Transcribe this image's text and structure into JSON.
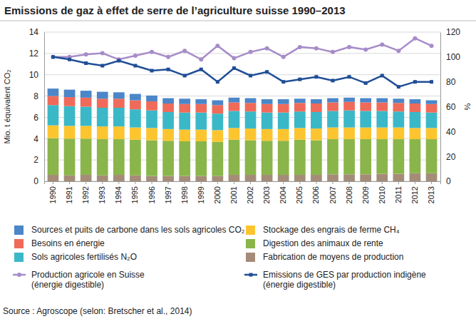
{
  "chart_data": {
    "type": "bar",
    "title": "Emissions de gaz à effet de serre de l’agriculture suisse 1990–2013",
    "y_label": "Mio. t équivalent CO₂",
    "y2_label": "%",
    "source": "Source : Agroscope (selon: Bretscher et al., 2014)",
    "stacked": true,
    "grid": true,
    "legend": "bottom",
    "categories": [
      "1990",
      "1991",
      "1992",
      "1993",
      "1994",
      "1995",
      "1996",
      "1997",
      "1998",
      "1999",
      "2000",
      "2001",
      "2002",
      "2003",
      "2004",
      "2005",
      "2006",
      "2007",
      "2008",
      "2009",
      "2010",
      "2011",
      "2012",
      "2013"
    ],
    "ylim": [
      0,
      14
    ],
    "yticks": [
      0,
      2,
      4,
      6,
      8,
      10,
      12,
      14
    ],
    "y2lim": [
      0,
      120
    ],
    "y2ticks": [
      0,
      20,
      40,
      60,
      80,
      100,
      120
    ],
    "series": [
      {
        "name": "Fabrication de moyens de production",
        "type": "bar",
        "color": "#a58c78",
        "values": [
          0.6,
          0.55,
          0.6,
          0.55,
          0.6,
          0.55,
          0.5,
          0.5,
          0.5,
          0.5,
          0.5,
          0.6,
          0.6,
          0.6,
          0.6,
          0.6,
          0.6,
          0.65,
          0.65,
          0.65,
          0.7,
          0.7,
          0.75,
          0.75
        ]
      },
      {
        "name": "Digestion des animaux de rente",
        "type": "bar",
        "color": "#8ab54a",
        "values": [
          3.45,
          3.45,
          3.4,
          3.4,
          3.35,
          3.35,
          3.35,
          3.3,
          3.25,
          3.25,
          3.2,
          3.3,
          3.25,
          3.2,
          3.2,
          3.3,
          3.25,
          3.3,
          3.3,
          3.3,
          3.25,
          3.25,
          3.2,
          3.2
        ]
      },
      {
        "name": "Stockage des engrais de ferme CH₄",
        "type": "bar",
        "color": "#fcc530",
        "values": [
          1.2,
          1.2,
          1.2,
          1.2,
          1.2,
          1.15,
          1.15,
          1.1,
          1.1,
          1.1,
          1.1,
          1.1,
          1.1,
          1.1,
          1.1,
          1.1,
          1.1,
          1.1,
          1.1,
          1.1,
          1.1,
          1.1,
          1.05,
          1.05
        ]
      },
      {
        "name": "Sols agricoles fertilisés N₂O",
        "type": "bar",
        "color": "#3ab8c8",
        "values": [
          1.9,
          1.85,
          1.8,
          1.75,
          1.75,
          1.7,
          1.65,
          1.6,
          1.6,
          1.6,
          1.55,
          1.6,
          1.6,
          1.55,
          1.55,
          1.55,
          1.55,
          1.55,
          1.6,
          1.55,
          1.55,
          1.5,
          1.5,
          1.45
        ]
      },
      {
        "name": "Besoins en énergie",
        "type": "bar",
        "color": "#f06a5a",
        "values": [
          0.85,
          0.85,
          0.85,
          0.85,
          0.85,
          0.85,
          0.85,
          0.8,
          0.8,
          0.8,
          0.8,
          0.8,
          0.8,
          0.8,
          0.8,
          0.8,
          0.8,
          0.8,
          0.8,
          0.8,
          0.8,
          0.8,
          0.8,
          0.8
        ]
      },
      {
        "name": "Sources et puits de carbone dans les sols agricoles CO₂",
        "type": "bar",
        "color": "#4a86c8",
        "values": [
          0.7,
          0.7,
          0.65,
          0.65,
          0.6,
          0.6,
          0.55,
          0.5,
          0.5,
          0.45,
          0.45,
          0.45,
          0.45,
          0.45,
          0.45,
          0.4,
          0.4,
          0.4,
          0.4,
          0.4,
          0.4,
          0.4,
          0.4,
          0.35
        ]
      },
      {
        "name": "Production agricole en Suisse (énergie digestible)",
        "type": "line",
        "axis": "y2",
        "color": "#a68cc8",
        "marker": "circle",
        "values": [
          100,
          100,
          102,
          103,
          98,
          101,
          104,
          100,
          105,
          98,
          109,
          99,
          104,
          107,
          100,
          108,
          107,
          104,
          108,
          106,
          110,
          105,
          115,
          109
        ]
      },
      {
        "name": "Emissions de GES par production indigène (énergie digestible)",
        "type": "line",
        "axis": "y2",
        "color": "#1f4e96",
        "marker": "square",
        "values": [
          100,
          98,
          95,
          93,
          97,
          93,
          89,
          90,
          85,
          90,
          80,
          91,
          85,
          88,
          80,
          82,
          84,
          81,
          84,
          79,
          85,
          76,
          80,
          80
        ]
      }
    ]
  }
}
